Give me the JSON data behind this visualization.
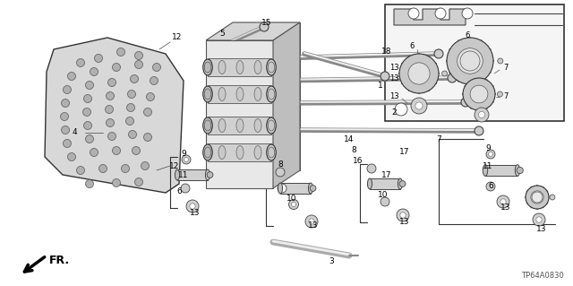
{
  "bg_color": "#ffffff",
  "part_code": "TP64A0830",
  "direction_label": "FR.",
  "fig_width": 6.4,
  "fig_height": 3.19,
  "dpi": 100
}
